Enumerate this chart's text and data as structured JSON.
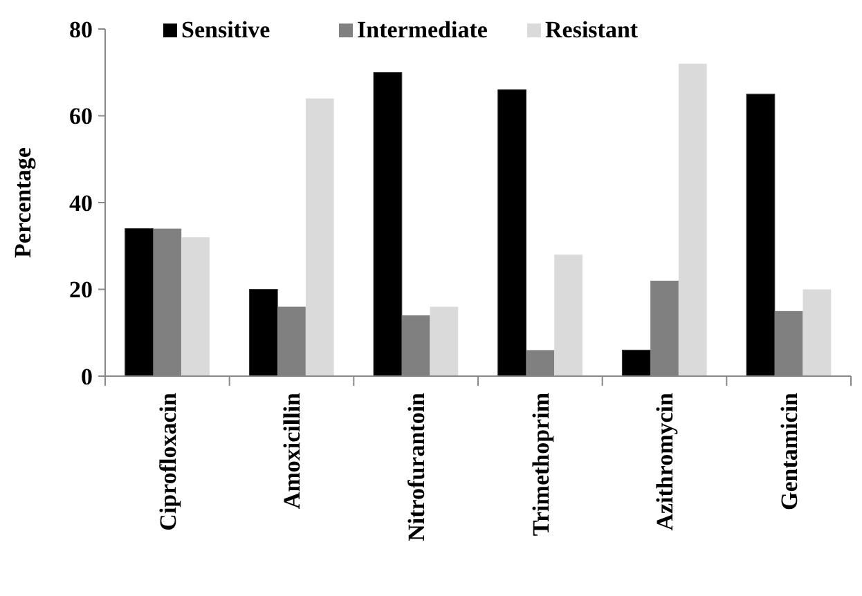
{
  "chart_data": {
    "type": "bar",
    "ylabel": "Percentage",
    "categories": [
      "Ciprofloxacin",
      "Amoxicillin",
      "Nitrofurantoin",
      "Trimethoprim",
      "Azithromycin",
      "Gentamicin"
    ],
    "series": [
      {
        "name": "Sensitive",
        "color": "#000000",
        "values": [
          34,
          20,
          70,
          66,
          6,
          65
        ]
      },
      {
        "name": "Intermediate",
        "color": "#808080",
        "values": [
          34,
          16,
          14,
          6,
          22,
          15
        ]
      },
      {
        "name": "Resistant",
        "color": "#dadada",
        "values": [
          32,
          64,
          16,
          28,
          72,
          20
        ]
      }
    ],
    "ylim": [
      0,
      80
    ],
    "yticks": [
      0,
      20,
      40,
      60,
      80
    ],
    "grid": false,
    "legend": "top"
  }
}
